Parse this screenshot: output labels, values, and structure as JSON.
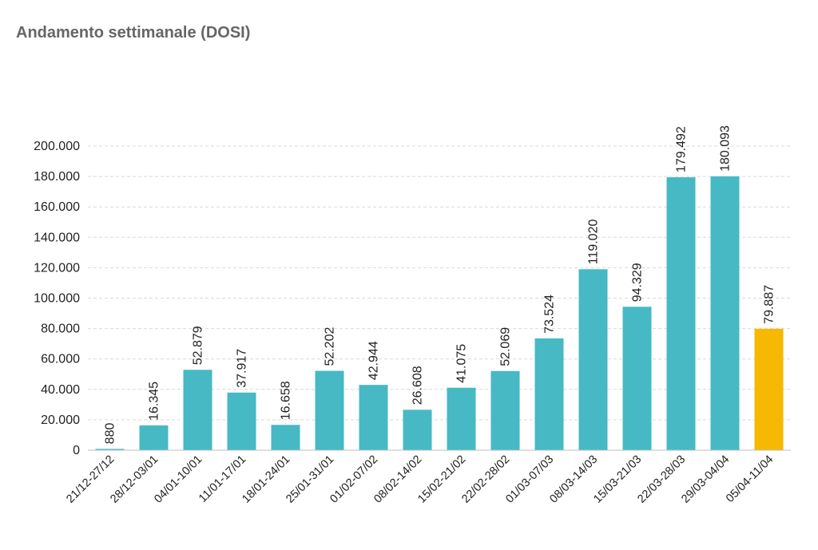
{
  "chart_data": {
    "type": "bar",
    "title": "Andamento settimanale (DOSI)",
    "xlabel": "",
    "ylabel": "",
    "ylim": [
      0,
      200000
    ],
    "yticks": [
      0,
      20000,
      40000,
      60000,
      80000,
      100000,
      120000,
      140000,
      160000,
      180000,
      200000
    ],
    "ytick_labels": [
      "0",
      "20.000",
      "40.000",
      "60.000",
      "80.000",
      "100.000",
      "120.000",
      "140.000",
      "160.000",
      "180.000",
      "200.000"
    ],
    "grid": true,
    "categories": [
      "21/12-27/12",
      "28/12-03/01",
      "04/01-10/01",
      "11/01-17/01",
      "18/01-24/01",
      "25/01-31/01",
      "01/02-07/02",
      "08/02-14/02",
      "15/02-21/02",
      "22/02-28/02",
      "01/03-07/03",
      "08/03-14/03",
      "15/03-21/03",
      "22/03-28/03",
      "29/03-04/04",
      "05/04-11/04"
    ],
    "values": [
      880,
      16345,
      52879,
      37917,
      16658,
      52202,
      42944,
      26608,
      41075,
      52069,
      73524,
      119020,
      94329,
      179492,
      180093,
      79887
    ],
    "value_labels": [
      "880",
      "16.345",
      "52.879",
      "37.917",
      "16.658",
      "52.202",
      "42.944",
      "26.608",
      "41.075",
      "52.069",
      "73.524",
      "119.020",
      "94.329",
      "179.492",
      "180.093",
      "79.887"
    ],
    "colors": {
      "bar": "#46B9C5",
      "highlight": "#F6B800",
      "grid": "#D9D9D9",
      "axis": "#BFBFBF"
    },
    "highlight_index": 15
  }
}
